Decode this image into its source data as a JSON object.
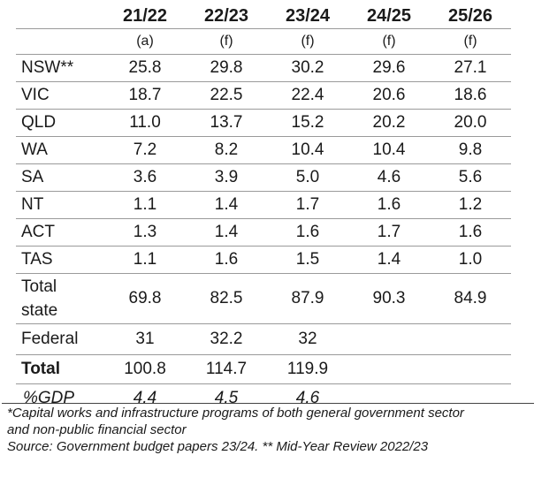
{
  "table": {
    "columns": [
      {
        "year": "21/22",
        "note": "(a)"
      },
      {
        "year": "22/23",
        "note": "(f)"
      },
      {
        "year": "23/24",
        "note": "(f)"
      },
      {
        "year": "24/25",
        "note": "(f)"
      },
      {
        "year": "25/26",
        "note": "(f)"
      }
    ],
    "rows": [
      {
        "label": "NSW**",
        "values": [
          "25.8",
          "29.8",
          "30.2",
          "29.6",
          "27.1"
        ]
      },
      {
        "label": "VIC",
        "values": [
          "18.7",
          "22.5",
          "22.4",
          "20.6",
          "18.6"
        ]
      },
      {
        "label": "QLD",
        "values": [
          "11.0",
          "13.7",
          "15.2",
          "20.2",
          "20.0"
        ]
      },
      {
        "label": "WA",
        "values": [
          "7.2",
          "8.2",
          "10.4",
          "10.4",
          "9.8"
        ]
      },
      {
        "label": "SA",
        "values": [
          "3.6",
          "3.9",
          "5.0",
          "4.6",
          "5.6"
        ]
      },
      {
        "label": "NT",
        "values": [
          "1.1",
          "1.4",
          "1.7",
          "1.6",
          "1.2"
        ]
      },
      {
        "label": "ACT",
        "values": [
          "1.3",
          "1.4",
          "1.6",
          "1.7",
          "1.6"
        ]
      },
      {
        "label": "TAS",
        "values": [
          "1.1",
          "1.6",
          "1.5",
          "1.4",
          "1.0"
        ]
      }
    ],
    "total_state": {
      "label_line1": "Total",
      "label_line2": "state",
      "values": [
        "69.8",
        "82.5",
        "87.9",
        "90.3",
        "84.9"
      ]
    },
    "federal": {
      "label": "Federal",
      "values": [
        "31",
        "32.2",
        "32",
        "",
        ""
      ]
    },
    "total": {
      "label": "Total",
      "values": [
        "100.8",
        "114.7",
        "119.9",
        "",
        ""
      ]
    },
    "gdp": {
      "label": "%GDP",
      "values": [
        "4.4",
        "4.5",
        "4.6",
        "",
        ""
      ]
    }
  },
  "notes": {
    "line1": "*Capital works and infrastructure programs of both general government sector",
    "line2": "and non-public financial sector",
    "line3": "Source: Government budget papers 23/24. ** Mid-Year Review 2022/23"
  }
}
